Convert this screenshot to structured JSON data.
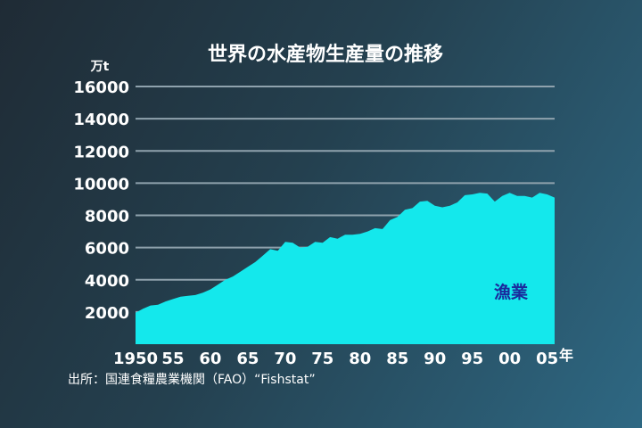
{
  "chart_data": {
    "type": "area",
    "title": "世界の水産物生産量の推移",
    "ylabel": "万t",
    "xlabel": "年",
    "source": "出所：国連食糧農業機関（FAO）“Fishstat”",
    "series_label": "漁業",
    "ylim": [
      0,
      16000
    ],
    "y_ticks": [
      2000,
      4000,
      6000,
      8000,
      10000,
      12000,
      14000,
      16000
    ],
    "x_ticks": [
      {
        "year": 1950,
        "label": "1950"
      },
      {
        "year": 1955,
        "label": "55"
      },
      {
        "year": 1960,
        "label": "60"
      },
      {
        "year": 1965,
        "label": "65"
      },
      {
        "year": 1970,
        "label": "70"
      },
      {
        "year": 1975,
        "label": "75"
      },
      {
        "year": 1980,
        "label": "80"
      },
      {
        "year": 1985,
        "label": "85"
      },
      {
        "year": 1990,
        "label": "90"
      },
      {
        "year": 1995,
        "label": "95"
      },
      {
        "year": 2000,
        "label": "00"
      },
      {
        "year": 2005,
        "label": "05"
      }
    ],
    "x": [
      1950,
      1951,
      1952,
      1953,
      1954,
      1955,
      1956,
      1957,
      1958,
      1959,
      1960,
      1961,
      1962,
      1963,
      1964,
      1965,
      1966,
      1967,
      1968,
      1969,
      1970,
      1971,
      1972,
      1973,
      1974,
      1975,
      1976,
      1977,
      1978,
      1979,
      1980,
      1981,
      1982,
      1983,
      1984,
      1985,
      1986,
      1987,
      1988,
      1989,
      1990,
      1991,
      1992,
      1993,
      1994,
      1995,
      1996,
      1997,
      1998,
      1999,
      2000,
      2001,
      2002,
      2003,
      2004,
      2005,
      2006
    ],
    "series": [
      {
        "values": [
          1950,
          2200,
          2400,
          2450,
          2650,
          2800,
          2950,
          3000,
          3050,
          3200,
          3400,
          3700,
          4000,
          4200,
          4500,
          4800,
          5100,
          5500,
          5900,
          5800,
          6350,
          6300,
          6000,
          6050,
          6350,
          6300,
          6650,
          6550,
          6800,
          6800,
          6850,
          7000,
          7200,
          7150,
          7700,
          7900,
          8350,
          8450,
          8850,
          8900,
          8600,
          8500,
          8600,
          8800,
          9250,
          9300,
          9400,
          9350,
          8850,
          9200,
          9400,
          9200,
          9200,
          9100,
          9400,
          9300,
          9100
        ],
        "color": "#14e8ec"
      }
    ],
    "grid": true,
    "grid_color": "#8fa2ad"
  }
}
